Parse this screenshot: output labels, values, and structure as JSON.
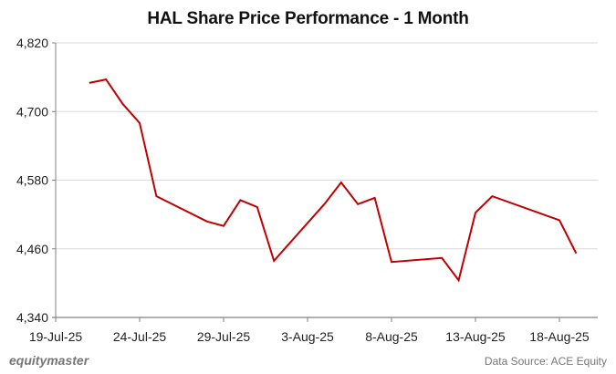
{
  "chart_data": {
    "type": "line",
    "title": "HAL Share Price Performance - 1 Month",
    "xlabel": "",
    "ylabel": "",
    "ylim": [
      4340,
      4820
    ],
    "yticks": [
      4340,
      4460,
      4580,
      4700,
      4820
    ],
    "ytick_labels": [
      "4,340",
      "4,460",
      "4,580",
      "4,700",
      "4,820"
    ],
    "xtick_labels": [
      "19-Jul-25",
      "24-Jul-25",
      "29-Jul-25",
      "3-Aug-25",
      "8-Aug-25",
      "13-Aug-25",
      "18-Aug-25"
    ],
    "grid": true,
    "legend": "none",
    "series": [
      {
        "name": "HAL",
        "color": "#c00000",
        "x": [
          "21-Jul-25",
          "22-Jul-25",
          "23-Jul-25",
          "24-Jul-25",
          "25-Jul-25",
          "28-Jul-25",
          "29-Jul-25",
          "30-Jul-25",
          "31-Jul-25",
          "1-Aug-25",
          "4-Aug-25",
          "5-Aug-25",
          "6-Aug-25",
          "7-Aug-25",
          "8-Aug-25",
          "11-Aug-25",
          "12-Aug-25",
          "13-Aug-25",
          "14-Aug-25",
          "18-Aug-25",
          "19-Aug-25"
        ],
        "day_index": [
          2,
          3,
          4,
          5,
          6,
          9,
          10,
          11,
          12,
          13,
          16,
          17,
          18,
          19,
          20,
          23,
          24,
          25,
          26,
          30,
          31
        ],
        "values": [
          4750,
          4756,
          4713,
          4680,
          4552,
          4508,
          4500,
          4545,
          4533,
          4439,
          4538,
          4576,
          4538,
          4549,
          4437,
          4444,
          4405,
          4523,
          4552,
          4510,
          4452
        ]
      }
    ]
  },
  "footer": {
    "brand": "equitymaster",
    "source": "Data Source: ACE Equity"
  }
}
